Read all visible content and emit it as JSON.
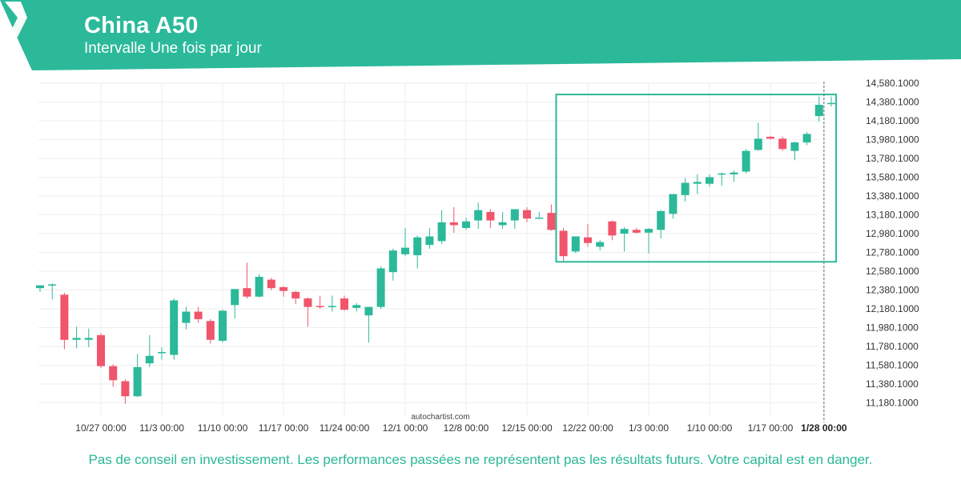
{
  "header": {
    "title": "China A50",
    "subtitle": "Intervalle Une fois par jour"
  },
  "colors": {
    "brand": "#2bb99a",
    "bull": "#2bb99a",
    "bear": "#f0556b",
    "grid": "#eeeeee",
    "text": "#333333"
  },
  "watermark": "autochartist.com",
  "disclaimer": "Pas de conseil en investissement. Les performances passées ne représentent pas les résultats futurs. Votre capital est en danger.",
  "chart_data": {
    "type": "candlestick",
    "title": "China A50",
    "y_ticks": [
      11180.1,
      11380.1,
      11580.1,
      11780.1,
      11980.1,
      12180.1,
      12380.1,
      12580.1,
      12780.1,
      12980.1,
      13180.1,
      13380.1,
      13580.1,
      13780.1,
      13980.1,
      14180.1,
      14380.1,
      14580.1
    ],
    "y_tick_labels": [
      "11,180.1000",
      "11,380.1000",
      "11,580.1000",
      "11,780.1000",
      "11,980.1000",
      "12,180.1000",
      "12,380.1000",
      "12,580.1000",
      "12,780.1000",
      "12,980.1000",
      "13,180.1000",
      "13,380.1000",
      "13,580.1000",
      "13,780.1000",
      "13,980.1000",
      "14,180.1000",
      "14,380.1000",
      "14,580.1000"
    ],
    "ylim": [
      11100,
      14620
    ],
    "x_ticks": [
      {
        "label": "10/27 00:00",
        "index": 5
      },
      {
        "label": "11/3 00:00",
        "index": 10
      },
      {
        "label": "11/10 00:00",
        "index": 15
      },
      {
        "label": "11/17 00:00",
        "index": 20
      },
      {
        "label": "11/24 00:00",
        "index": 25
      },
      {
        "label": "12/1 00:00",
        "index": 30
      },
      {
        "label": "12/8 00:00",
        "index": 35
      },
      {
        "label": "12/15 00:00",
        "index": 40
      },
      {
        "label": "12/22 00:00",
        "index": 45
      },
      {
        "label": "1/3 00:00",
        "index": 50
      },
      {
        "label": "1/10 00:00",
        "index": 55
      },
      {
        "label": "1/17 00:00",
        "index": 60
      },
      {
        "label": "1/28 00:00",
        "index": 64.4,
        "highlight": true
      }
    ],
    "candles": [
      {
        "o": 12400,
        "h": 12420,
        "l": 12360,
        "c": 12430
      },
      {
        "o": 12440,
        "h": 12450,
        "l": 12280,
        "c": 12440
      },
      {
        "o": 12330,
        "h": 12350,
        "l": 11750,
        "c": 11850
      },
      {
        "o": 11850,
        "h": 11990,
        "l": 11760,
        "c": 11870
      },
      {
        "o": 11850,
        "h": 11970,
        "l": 11770,
        "c": 11870
      },
      {
        "o": 11900,
        "h": 11920,
        "l": 11550,
        "c": 11570
      },
      {
        "o": 11570,
        "h": 11590,
        "l": 11350,
        "c": 11420
      },
      {
        "o": 11410,
        "h": 11430,
        "l": 11170,
        "c": 11250
      },
      {
        "o": 11250,
        "h": 11700,
        "l": 11240,
        "c": 11560
      },
      {
        "o": 11600,
        "h": 11900,
        "l": 11560,
        "c": 11680
      },
      {
        "o": 11710,
        "h": 11770,
        "l": 11640,
        "c": 11720
      },
      {
        "o": 11690,
        "h": 12290,
        "l": 11640,
        "c": 12270
      },
      {
        "o": 12030,
        "h": 12200,
        "l": 11960,
        "c": 12150
      },
      {
        "o": 12150,
        "h": 12200,
        "l": 12030,
        "c": 12070
      },
      {
        "o": 12050,
        "h": 12070,
        "l": 11810,
        "c": 11850
      },
      {
        "o": 11840,
        "h": 12170,
        "l": 11820,
        "c": 12160
      },
      {
        "o": 12220,
        "h": 12390,
        "l": 12080,
        "c": 12390
      },
      {
        "o": 12400,
        "h": 12670,
        "l": 12290,
        "c": 12310
      },
      {
        "o": 12310,
        "h": 12550,
        "l": 12300,
        "c": 12520
      },
      {
        "o": 12490,
        "h": 12510,
        "l": 12380,
        "c": 12400
      },
      {
        "o": 12410,
        "h": 12420,
        "l": 12310,
        "c": 12370
      },
      {
        "o": 12360,
        "h": 12370,
        "l": 12230,
        "c": 12290
      },
      {
        "o": 12290,
        "h": 12300,
        "l": 11990,
        "c": 12200
      },
      {
        "o": 12210,
        "h": 12320,
        "l": 12180,
        "c": 12200
      },
      {
        "o": 12200,
        "h": 12320,
        "l": 12150,
        "c": 12210
      },
      {
        "o": 12290,
        "h": 12320,
        "l": 12160,
        "c": 12170
      },
      {
        "o": 12190,
        "h": 12240,
        "l": 12150,
        "c": 12220
      },
      {
        "o": 12110,
        "h": 12200,
        "l": 11820,
        "c": 12200
      },
      {
        "o": 12200,
        "h": 12630,
        "l": 12180,
        "c": 12610
      },
      {
        "o": 12570,
        "h": 12820,
        "l": 12480,
        "c": 12800
      },
      {
        "o": 12760,
        "h": 13040,
        "l": 12740,
        "c": 12830
      },
      {
        "o": 12750,
        "h": 12960,
        "l": 12610,
        "c": 12940
      },
      {
        "o": 12860,
        "h": 13040,
        "l": 12820,
        "c": 12950
      },
      {
        "o": 12900,
        "h": 13230,
        "l": 12870,
        "c": 13100
      },
      {
        "o": 13100,
        "h": 13260,
        "l": 12990,
        "c": 13070
      },
      {
        "o": 13040,
        "h": 13150,
        "l": 13020,
        "c": 13110
      },
      {
        "o": 13120,
        "h": 13310,
        "l": 13030,
        "c": 13230
      },
      {
        "o": 13210,
        "h": 13240,
        "l": 13040,
        "c": 13120
      },
      {
        "o": 13070,
        "h": 13210,
        "l": 13030,
        "c": 13100
      },
      {
        "o": 13120,
        "h": 13240,
        "l": 13030,
        "c": 13240
      },
      {
        "o": 13230,
        "h": 13260,
        "l": 13100,
        "c": 13140
      },
      {
        "o": 13150,
        "h": 13210,
        "l": 13140,
        "c": 13150
      },
      {
        "o": 13200,
        "h": 13290,
        "l": 13010,
        "c": 13020
      },
      {
        "o": 13010,
        "h": 13040,
        "l": 12670,
        "c": 12740
      },
      {
        "o": 12790,
        "h": 12950,
        "l": 12770,
        "c": 12950
      },
      {
        "o": 12940,
        "h": 13080,
        "l": 12840,
        "c": 12880
      },
      {
        "o": 12840,
        "h": 12910,
        "l": 12800,
        "c": 12890
      },
      {
        "o": 13110,
        "h": 13120,
        "l": 12910,
        "c": 12960
      },
      {
        "o": 12980,
        "h": 13050,
        "l": 12790,
        "c": 13030
      },
      {
        "o": 13020,
        "h": 13040,
        "l": 12980,
        "c": 12990
      },
      {
        "o": 12990,
        "h": 13040,
        "l": 12770,
        "c": 13030
      },
      {
        "o": 13020,
        "h": 13230,
        "l": 12930,
        "c": 13220
      },
      {
        "o": 13190,
        "h": 13400,
        "l": 13140,
        "c": 13400
      },
      {
        "o": 13390,
        "h": 13570,
        "l": 13320,
        "c": 13520
      },
      {
        "o": 13510,
        "h": 13610,
        "l": 13400,
        "c": 13530
      },
      {
        "o": 13510,
        "h": 13610,
        "l": 13480,
        "c": 13580
      },
      {
        "o": 13610,
        "h": 13630,
        "l": 13490,
        "c": 13620
      },
      {
        "o": 13610,
        "h": 13650,
        "l": 13530,
        "c": 13630
      },
      {
        "o": 13640,
        "h": 13880,
        "l": 13620,
        "c": 13860
      },
      {
        "o": 13870,
        "h": 14160,
        "l": 13860,
        "c": 13990
      },
      {
        "o": 14010,
        "h": 14020,
        "l": 13980,
        "c": 13990
      },
      {
        "o": 13990,
        "h": 14010,
        "l": 13860,
        "c": 13880
      },
      {
        "o": 13860,
        "h": 13960,
        "l": 13760,
        "c": 13950
      },
      {
        "o": 13950,
        "h": 14060,
        "l": 13920,
        "c": 14040
      },
      {
        "o": 14230,
        "h": 14440,
        "l": 14170,
        "c": 14350
      },
      {
        "o": 14370,
        "h": 14440,
        "l": 14330,
        "c": 14370
      }
    ],
    "highlight_box": {
      "from_index": 42.4,
      "to_index": 65.4,
      "y_top": 14460,
      "y_bottom": 12680
    },
    "current_line_index": 64.4,
    "grid": true
  }
}
